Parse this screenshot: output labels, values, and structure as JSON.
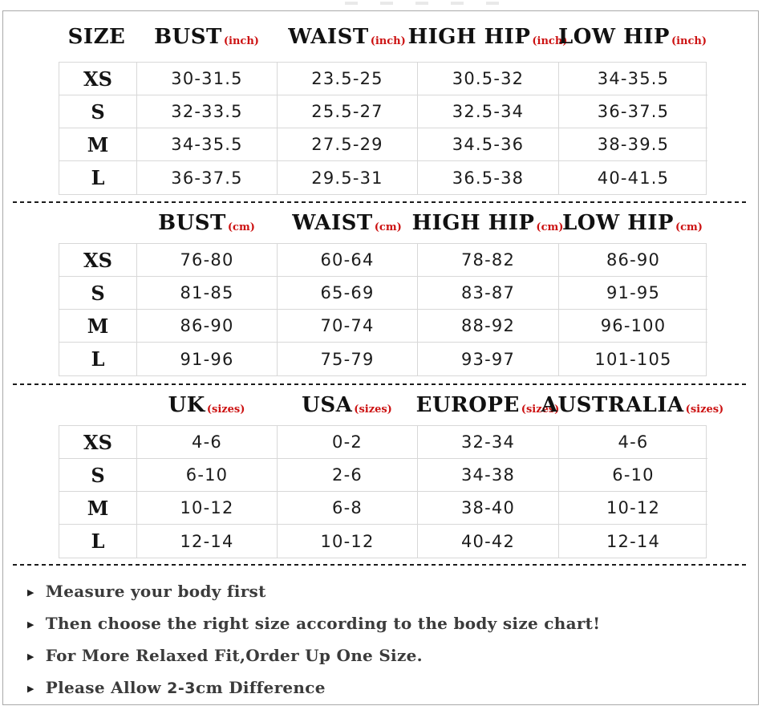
{
  "meta": {
    "accent_red": "#cc1212",
    "frame_border": "#a9a9a9",
    "grid_border": "#d8d8d8",
    "bullet_icon": "▶"
  },
  "sections": [
    {
      "name": "measurements-inch",
      "headers": [
        {
          "label": "SIZE",
          "sub": ""
        },
        {
          "label": "BUST",
          "sub": "(inch)"
        },
        {
          "label": "WAIST",
          "sub": "(inch)"
        },
        {
          "label": "HIGH HIP",
          "sub": "(inch)"
        },
        {
          "label": "LOW HIP",
          "sub": "(inch)"
        }
      ],
      "rows": [
        {
          "size": "XS",
          "values": [
            "30-31.5",
            "23.5-25",
            "30.5-32",
            "34-35.5"
          ]
        },
        {
          "size": "S",
          "values": [
            "32-33.5",
            "25.5-27",
            "32.5-34",
            "36-37.5"
          ]
        },
        {
          "size": "M",
          "values": [
            "34-35.5",
            "27.5-29",
            "34.5-36",
            "38-39.5"
          ]
        },
        {
          "size": "L",
          "values": [
            "36-37.5",
            "29.5-31",
            "36.5-38",
            "40-41.5"
          ]
        }
      ]
    },
    {
      "name": "measurements-cm",
      "headers": [
        {
          "label": "",
          "sub": ""
        },
        {
          "label": "BUST",
          "sub": "(cm)"
        },
        {
          "label": "WAIST",
          "sub": "(cm)"
        },
        {
          "label": "HIGH HIP",
          "sub": "(cm)"
        },
        {
          "label": "LOW HIP",
          "sub": "(cm)"
        }
      ],
      "rows": [
        {
          "size": "XS",
          "values": [
            "76-80",
            "60-64",
            "78-82",
            "86-90"
          ]
        },
        {
          "size": "S",
          "values": [
            "81-85",
            "65-69",
            "83-87",
            "91-95"
          ]
        },
        {
          "size": "M",
          "values": [
            "86-90",
            "70-74",
            "88-92",
            "96-100"
          ]
        },
        {
          "size": "L",
          "values": [
            "91-96",
            "75-79",
            "93-97",
            "101-105"
          ]
        }
      ]
    },
    {
      "name": "international-sizes",
      "headers": [
        {
          "label": "",
          "sub": ""
        },
        {
          "label": "UK",
          "sub": "(sizes)"
        },
        {
          "label": "USA",
          "sub": "(sizes)"
        },
        {
          "label": "EUROPE",
          "sub": "(sizes)"
        },
        {
          "label": "AUSTRALIA",
          "sub": "(sizes)"
        }
      ],
      "rows": [
        {
          "size": "XS",
          "values": [
            "4-6",
            "0-2",
            "32-34",
            "4-6"
          ]
        },
        {
          "size": "S",
          "values": [
            "6-10",
            "2-6",
            "34-38",
            "6-10"
          ]
        },
        {
          "size": "M",
          "values": [
            "10-12",
            "6-8",
            "38-40",
            "10-12"
          ]
        },
        {
          "size": "L",
          "values": [
            "12-14",
            "10-12",
            "40-42",
            "12-14"
          ]
        }
      ]
    }
  ],
  "notes": [
    {
      "text": "Measure your body first"
    },
    {
      "text": "Then choose the right size according to the body size chart!"
    },
    {
      "text": "For More Relaxed Fit,Order Up One Size."
    },
    {
      "prefix": "Please Allow ",
      "em": "2-3",
      "suffix": "cm Difference"
    }
  ]
}
